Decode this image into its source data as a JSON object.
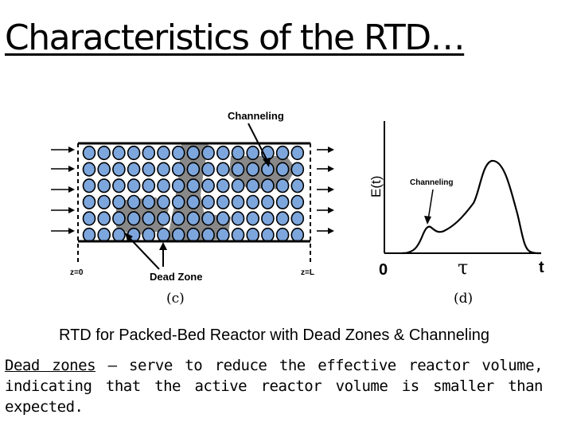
{
  "slide": {
    "title": "Characteristics of the RTD…",
    "caption": "RTD for Packed-Bed Reactor with Dead Zones & Channeling",
    "para_term": "Dead zones",
    "para_text": " – serve to reduce the effective reactor volume, indicating that the active reactor volume is smaller than expected."
  },
  "diagram_c": {
    "label_channeling": "Channeling",
    "label_dead_zone": "Dead Zone",
    "label_z0": "z=0",
    "label_zL": "z=L",
    "panel_label": "(c)",
    "colors": {
      "particle_fill": "#7da6dd",
      "zone_fill": "#888888",
      "stroke": "#000000"
    }
  },
  "diagram_d": {
    "ylabel": "E(t)",
    "xlabel": "t",
    "origin_label": "0",
    "tau_label": "τ",
    "annotation": "Channeling",
    "panel_label": "(d)"
  }
}
